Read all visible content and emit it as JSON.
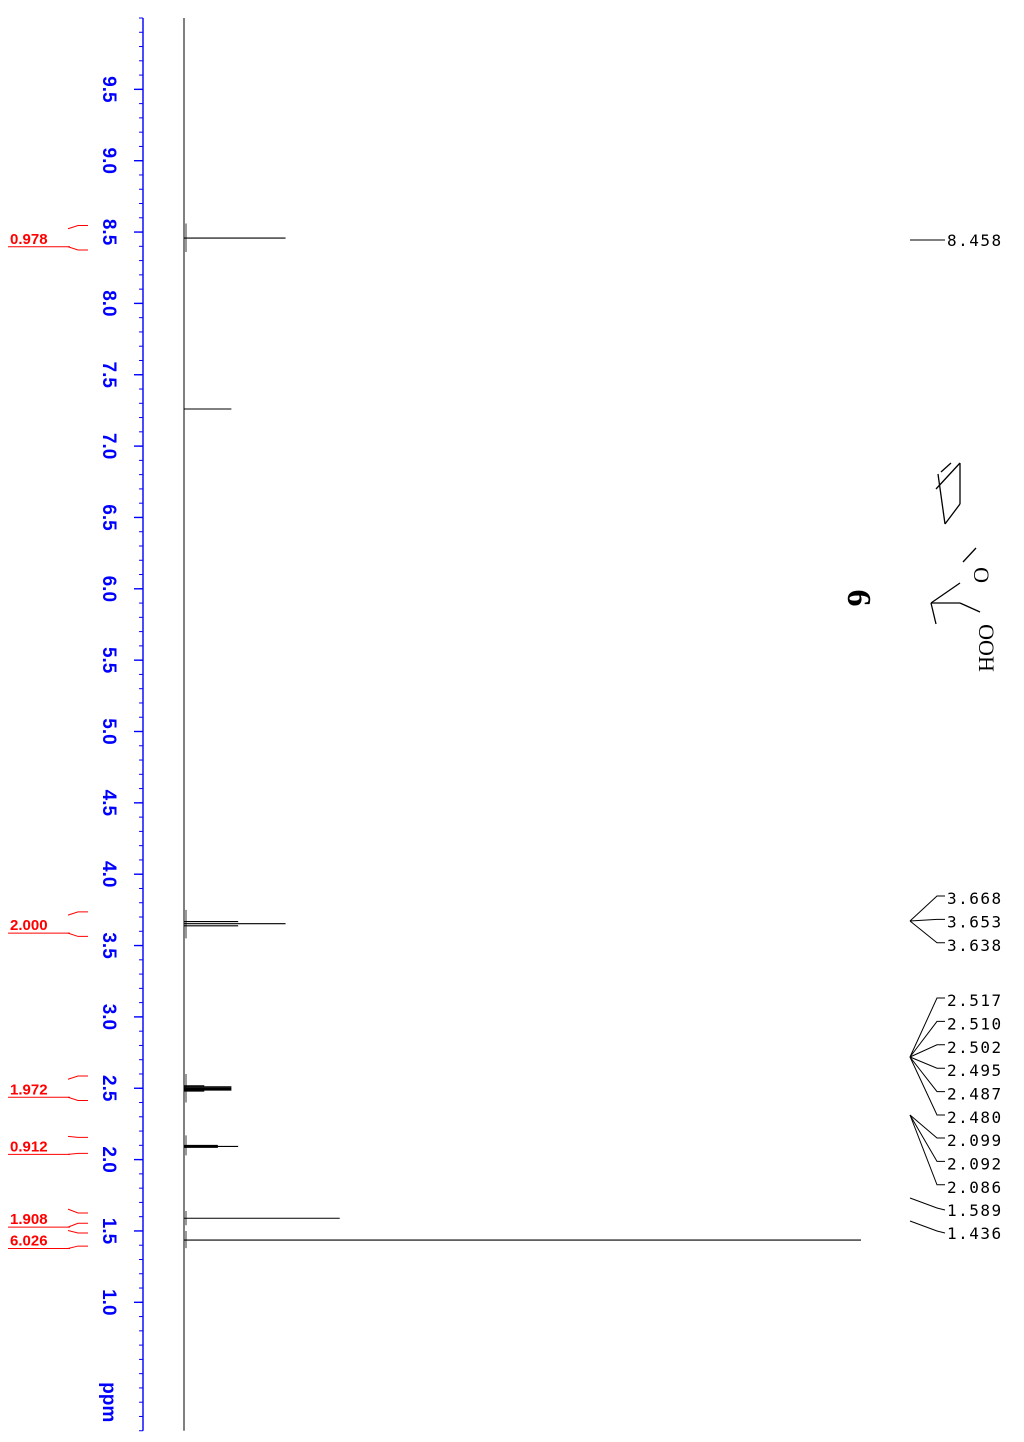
{
  "chart_data": {
    "type": "line",
    "title": "",
    "xlabel": "",
    "ylabel": "",
    "axis": {
      "unit_label": "ppm",
      "range_ppm": [
        0.1,
        10.0
      ],
      "major_ticks": [
        9.5,
        9.0,
        8.5,
        8.0,
        7.5,
        7.0,
        6.5,
        6.0,
        5.5,
        5.0,
        4.5,
        4.0,
        3.5,
        3.0,
        2.5,
        2.0,
        1.5,
        1.0
      ],
      "tick_labels": [
        "9.5",
        "9.0",
        "8.5",
        "8.0",
        "7.5",
        "7.0",
        "6.5",
        "6.0",
        "5.5",
        "5.0",
        "4.5",
        "4.0",
        "3.5",
        "3.0",
        "2.5",
        "2.0",
        "1.5",
        "1.0"
      ],
      "minor_tick_step": 0.1,
      "orientation": "rotated-90"
    },
    "peaks": [
      {
        "ppm": 8.458,
        "intensity": 0.15
      },
      {
        "ppm": 7.26,
        "intensity": 0.07
      },
      {
        "ppm": 3.668,
        "intensity": 0.08
      },
      {
        "ppm": 3.653,
        "intensity": 0.15
      },
      {
        "ppm": 3.638,
        "intensity": 0.08
      },
      {
        "ppm": 2.517,
        "intensity": 0.03
      },
      {
        "ppm": 2.51,
        "intensity": 0.07
      },
      {
        "ppm": 2.502,
        "intensity": 0.07
      },
      {
        "ppm": 2.495,
        "intensity": 0.07
      },
      {
        "ppm": 2.487,
        "intensity": 0.07
      },
      {
        "ppm": 2.48,
        "intensity": 0.03
      },
      {
        "ppm": 2.099,
        "intensity": 0.05
      },
      {
        "ppm": 2.092,
        "intensity": 0.08
      },
      {
        "ppm": 2.086,
        "intensity": 0.05
      },
      {
        "ppm": 1.589,
        "intensity": 0.23
      },
      {
        "ppm": 1.436,
        "intensity": 1.0
      }
    ],
    "peak_labels": [
      {
        "text": "8.458",
        "ppm": 8.458
      },
      {
        "text": "3.668",
        "ppm": 3.668
      },
      {
        "text": "3.653",
        "ppm": 3.653
      },
      {
        "text": "3.638",
        "ppm": 3.638
      },
      {
        "text": "2.517",
        "ppm": 2.517
      },
      {
        "text": "2.510",
        "ppm": 2.51
      },
      {
        "text": "2.502",
        "ppm": 2.502
      },
      {
        "text": "2.495",
        "ppm": 2.495
      },
      {
        "text": "2.487",
        "ppm": 2.487
      },
      {
        "text": "2.480",
        "ppm": 2.48
      },
      {
        "text": "2.099",
        "ppm": 2.099
      },
      {
        "text": "2.092",
        "ppm": 2.092
      },
      {
        "text": "2.086",
        "ppm": 2.086
      },
      {
        "text": "1.589",
        "ppm": 1.589
      },
      {
        "text": "1.436",
        "ppm": 1.436
      }
    ],
    "integrations": [
      {
        "value": "0.978",
        "from_ppm": 8.56,
        "to_ppm": 8.36
      },
      {
        "value": "2.000",
        "from_ppm": 3.75,
        "to_ppm": 3.55
      },
      {
        "value": "1.972",
        "from_ppm": 2.6,
        "to_ppm": 2.4
      },
      {
        "value": "0.912",
        "from_ppm": 2.17,
        "to_ppm": 2.03
      },
      {
        "value": "1.908",
        "from_ppm": 1.64,
        "to_ppm": 1.54
      },
      {
        "value": "6.026",
        "from_ppm": 1.5,
        "to_ppm": 1.38
      }
    ]
  },
  "compound": {
    "number": "6",
    "labels": [
      "O",
      "OOH"
    ]
  },
  "colors": {
    "axis": "#0000ff",
    "integrals": "#ff0000",
    "spectrum": "#000000"
  }
}
